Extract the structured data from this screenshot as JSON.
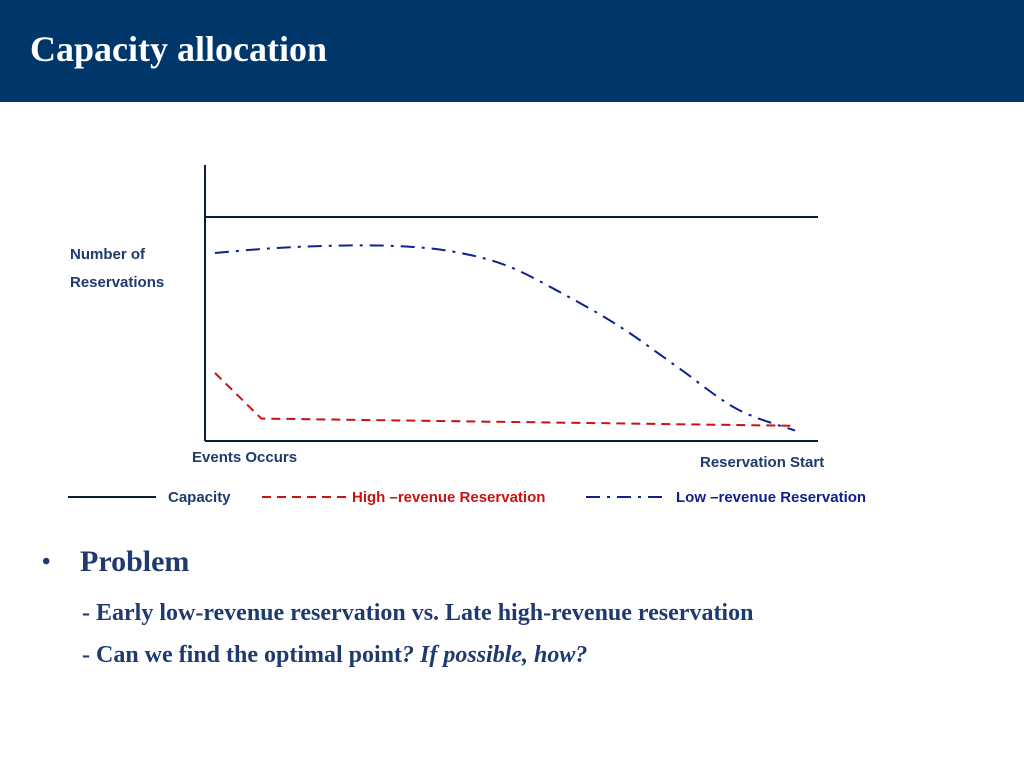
{
  "slide": {
    "title": "Capacity allocation"
  },
  "chart_data": {
    "type": "line",
    "ylabel_line1": "Number of",
    "ylabel_line2": "Reservations",
    "x_left_label": "Events Occurs",
    "x_right_label": "Reservation Start",
    "x": [
      0,
      0.1,
      0.2,
      0.3,
      0.4,
      0.5,
      0.6,
      0.7,
      0.8,
      0.9,
      1.0
    ],
    "series": [
      {
        "name": "Capacity",
        "color": "#0d1b3d",
        "style": "solid",
        "values": [
          0.9,
          0.9,
          0.9,
          0.9,
          0.9,
          0.9,
          0.9,
          0.9,
          0.9,
          0.9,
          0.9
        ]
      },
      {
        "name": "High –revenue Reservation",
        "color": "#cc1111",
        "style": "dashed",
        "x": [
          0,
          0.08,
          1.0
        ],
        "values": [
          0.25,
          0.06,
          0.03
        ]
      },
      {
        "name": "Low –revenue Reservation",
        "color": "#10208f",
        "style": "dash-dot",
        "values": [
          0.75,
          0.77,
          0.78,
          0.78,
          0.76,
          0.7,
          0.58,
          0.44,
          0.27,
          0.1,
          0.01
        ]
      }
    ],
    "grid": false,
    "legend": "bottom"
  },
  "bullets": {
    "dot": "•",
    "heading": "Problem",
    "line1": "- Early low-revenue reservation vs. Late high-revenue reservation",
    "line2_plain": "- Can we find the optimal point",
    "line2_italic": "? If possible, how?"
  }
}
